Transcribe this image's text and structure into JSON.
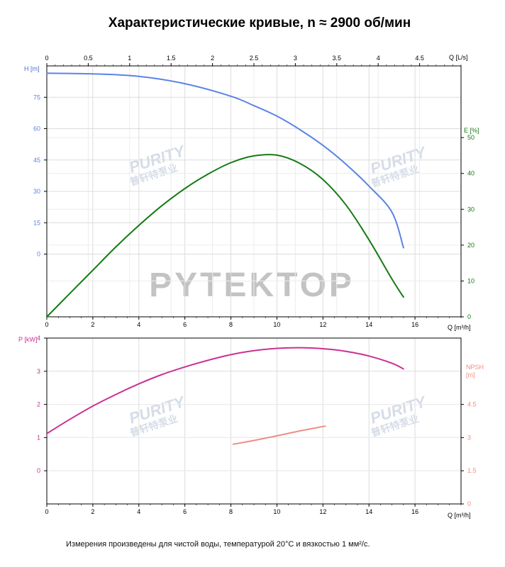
{
  "title": "Характеристические кривые, n ≈ 2900 об/мин",
  "note": "Измерения произведены для чистой воды, температурой 20°C и вязкостью 1 мм²/с.",
  "watermarks": {
    "brand_main": "PYTEKTOP",
    "brand_small": "PURITY",
    "brand_small_cn": "普轩特泵业"
  },
  "colors": {
    "head": "#5b84e6",
    "efficiency": "#157a15",
    "power": "#cc2f93",
    "npsh": "#f08d84",
    "axis": "#000000",
    "grid": "#dcdcdc",
    "axis_label": "#4a6fd0"
  },
  "chart_data": [
    {
      "type": "line",
      "panel": "top",
      "x_axis_bottom": {
        "label": "Q [m³/h]",
        "range": [
          0,
          18
        ],
        "ticks": [
          0,
          2,
          4,
          6,
          8,
          10,
          12,
          14,
          16
        ],
        "tick_labels": [
          "0",
          "2",
          "4",
          "6",
          "8",
          "10",
          "12",
          "14",
          "16"
        ]
      },
      "x_axis_top": {
        "label": "Q [L/s]",
        "range": [
          0,
          5
        ],
        "ticks": [
          0,
          0.5,
          1,
          1.5,
          2,
          2.5,
          3,
          3.5,
          4,
          4.5
        ],
        "tick_labels": [
          "0",
          "0.5",
          "1",
          "1.5",
          "2",
          "2.5",
          "3",
          "3.5",
          "4",
          "4.5"
        ]
      },
      "y_axis_left": {
        "label": "H [m]",
        "range": [
          -30,
          90
        ],
        "ticks": [
          0,
          15,
          30,
          45,
          60,
          75
        ],
        "tick_labels": [
          "0",
          "15",
          "30",
          "45",
          "60",
          "75"
        ]
      },
      "y_axis_right": {
        "label": "E [%]",
        "range": [
          0,
          70
        ],
        "ticks": [
          0,
          10,
          20,
          30,
          40,
          50
        ],
        "tick_labels": [
          "0",
          "10",
          "20",
          "30",
          "40",
          "50"
        ]
      },
      "grid": true,
      "series": [
        {
          "axis": "left",
          "x": [
            0,
            2,
            4,
            6,
            8,
            9,
            10,
            11,
            12,
            13,
            14,
            15,
            15.5
          ],
          "y": [
            86.5,
            86.2,
            85,
            81.5,
            75.5,
            71,
            66,
            59.5,
            52,
            43,
            32.5,
            20,
            3
          ]
        },
        {
          "axis": "right",
          "x": [
            0,
            1,
            2,
            3,
            4,
            5,
            6,
            7,
            8,
            9,
            10,
            11,
            12,
            13,
            14,
            15,
            15.5
          ],
          "y": [
            0,
            6.5,
            13,
            19.5,
            25.5,
            31,
            35.8,
            39.8,
            43,
            44.9,
            45.1,
            42.8,
            38.3,
            31.2,
            21.5,
            10.5,
            5.5
          ]
        }
      ]
    },
    {
      "type": "line",
      "panel": "bottom",
      "x_axis_bottom": {
        "label": "Q [m³/h]",
        "range": [
          0,
          18
        ],
        "ticks": [
          0,
          2,
          4,
          6,
          8,
          10,
          12,
          14,
          16
        ],
        "tick_labels": [
          "0",
          "2",
          "4",
          "6",
          "8",
          "10",
          "12",
          "14",
          "16"
        ]
      },
      "y_axis_left": {
        "label": "P [kW]",
        "range": [
          -1,
          4
        ],
        "ticks": [
          0,
          1,
          2,
          3,
          4
        ],
        "tick_labels": [
          "0",
          "1",
          "2",
          "3",
          "4"
        ]
      },
      "y_axis_right": {
        "label_line1": "NPSH",
        "label_line2": "[m]",
        "range": [
          0,
          7.5
        ],
        "ticks": [
          0,
          1.5,
          3,
          4.5
        ],
        "tick_labels": [
          "0",
          "1.5",
          "3",
          "4.5"
        ]
      },
      "grid": true,
      "series": [
        {
          "axis": "left",
          "x": [
            0,
            1,
            2,
            3,
            4,
            5,
            6,
            7,
            8,
            9,
            10,
            11,
            12,
            13,
            14,
            15,
            15.5
          ],
          "y": [
            1.12,
            1.55,
            1.95,
            2.3,
            2.62,
            2.9,
            3.13,
            3.33,
            3.5,
            3.62,
            3.69,
            3.71,
            3.68,
            3.6,
            3.46,
            3.24,
            3.07
          ]
        },
        {
          "axis": "right",
          "x": [
            8.1,
            9,
            10,
            11,
            12.1
          ],
          "y": [
            2.7,
            2.87,
            3.08,
            3.3,
            3.52
          ]
        }
      ]
    }
  ]
}
